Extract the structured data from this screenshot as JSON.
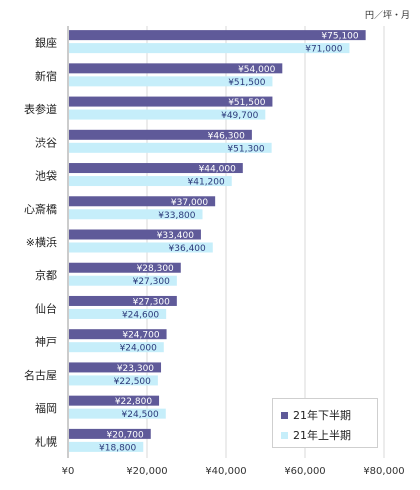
{
  "unit_label": "円／坪・月",
  "chart_data": {
    "type": "bar",
    "orientation": "horizontal",
    "categories": [
      "銀座",
      "新宿",
      "表参道",
      "渋谷",
      "池袋",
      "心斎橋",
      "※横浜",
      "京都",
      "仙台",
      "神戸",
      "名古屋",
      "福岡",
      "札幌"
    ],
    "series": [
      {
        "name": "21年下半期",
        "color": "#5f5a99",
        "values": [
          75100,
          54000,
          51500,
          46300,
          44000,
          37000,
          33400,
          28300,
          27300,
          24700,
          23300,
          22800,
          20700
        ],
        "labels": [
          "¥75,100",
          "¥54,000",
          "¥51,500",
          "¥46,300",
          "¥44,000",
          "¥37,000",
          "¥33,400",
          "¥28,300",
          "¥27,300",
          "¥24,700",
          "¥23,300",
          "¥22,800",
          "¥20,700"
        ]
      },
      {
        "name": "21年上半期",
        "color": "#c6eefa",
        "values": [
          71000,
          51500,
          49700,
          51300,
          41200,
          33800,
          36400,
          27300,
          24600,
          24000,
          22500,
          24500,
          18800
        ],
        "labels": [
          "¥71,000",
          "¥51,500",
          "¥49,700",
          "¥51,300",
          "¥41,200",
          "¥33,800",
          "¥36,400",
          "¥27,300",
          "¥24,600",
          "¥24,000",
          "¥22,500",
          "¥24,500",
          "¥18,800"
        ]
      }
    ],
    "xlim": [
      0,
      80000
    ],
    "xticks": [
      0,
      20000,
      40000,
      60000,
      80000
    ],
    "xtick_labels": [
      "¥0",
      "¥20,000",
      "¥40,000",
      "¥60,000",
      "¥80,000"
    ],
    "grid": true,
    "legend_position": "bottom-right"
  }
}
